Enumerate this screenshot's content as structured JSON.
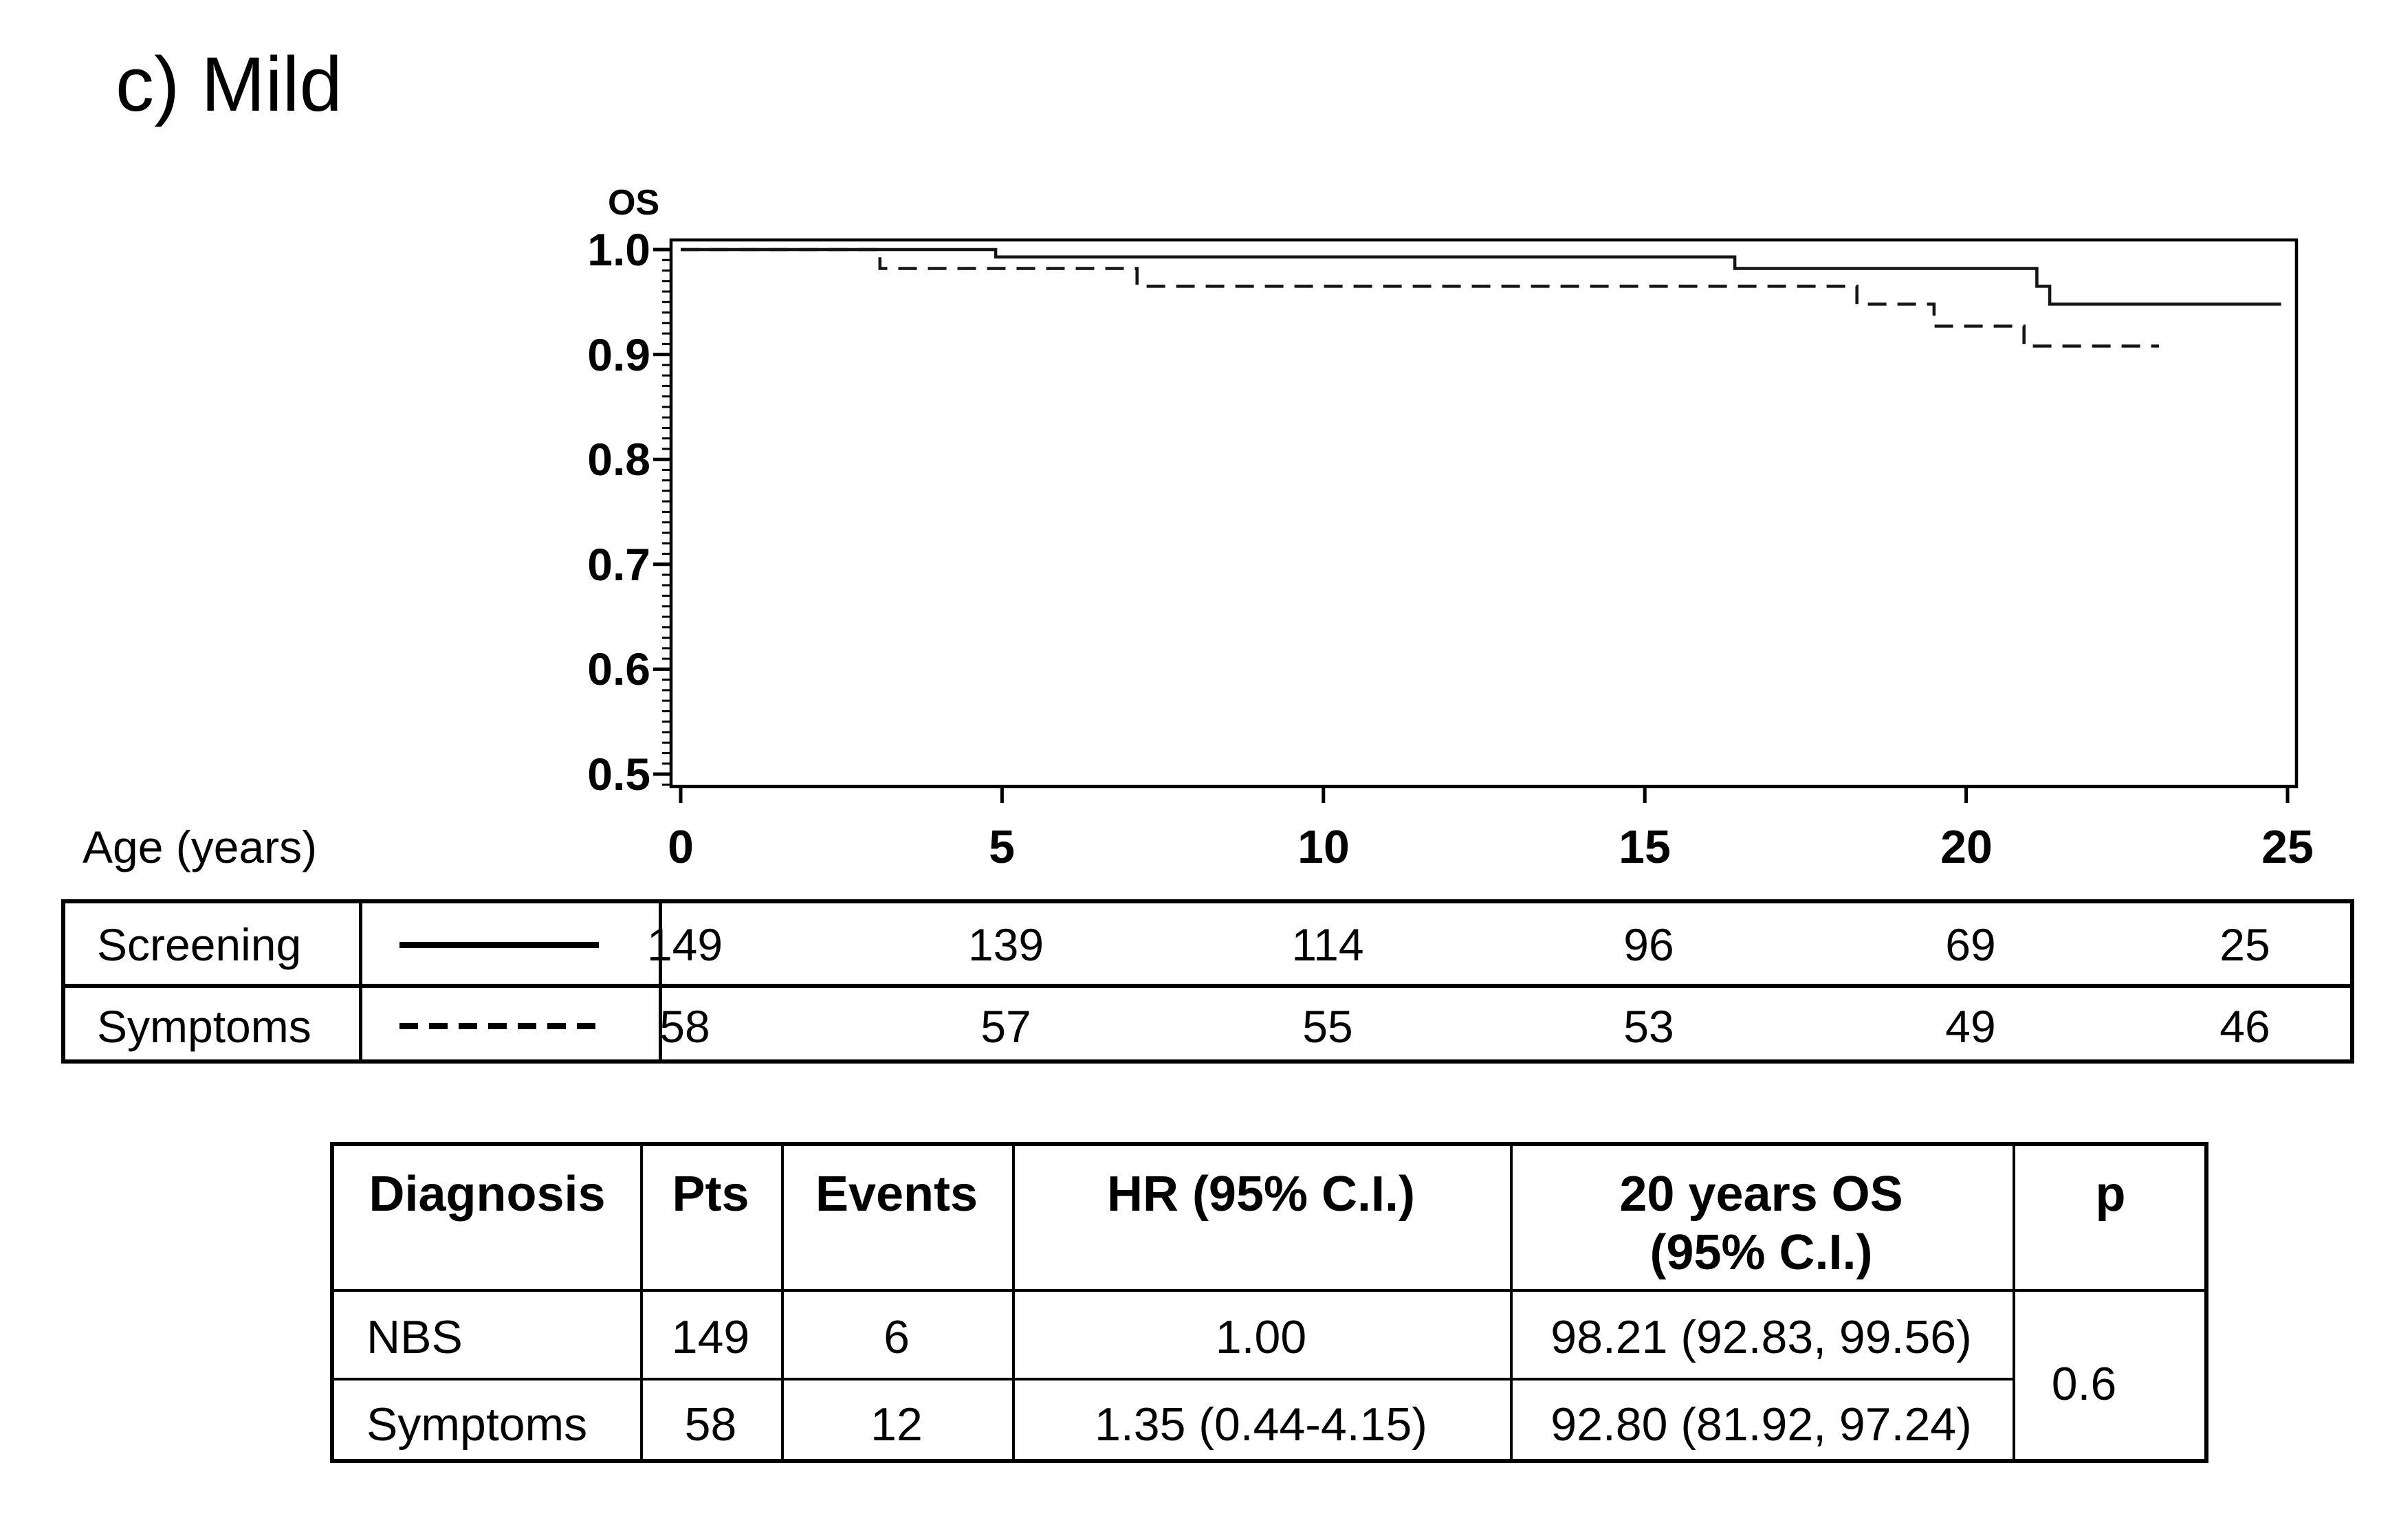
{
  "title": "c) Mild",
  "chart": {
    "ylabel": "OS",
    "xlabel": "Age (years)",
    "y_tick_labels": [
      "1.0",
      "0.9",
      "0.8",
      "0.7",
      "0.6",
      "0.5"
    ],
    "x_tick_labels": [
      "0",
      "5",
      "10",
      "15",
      "20",
      "25"
    ]
  },
  "chart_data": {
    "type": "line",
    "subtype": "kaplan-meier-step",
    "title": "c) Mild",
    "xlabel": "Age (years)",
    "ylabel": "OS",
    "xlim": [
      0,
      25
    ],
    "ylim": [
      0.5,
      1.0
    ],
    "x_ticks": [
      0,
      5,
      10,
      15,
      20,
      25
    ],
    "y_ticks": [
      1.0,
      0.9,
      0.8,
      0.7,
      0.6,
      0.5
    ],
    "y_minor_tick_interval": 0.01,
    "grid": false,
    "legend_position": "left column of risk table",
    "series": [
      {
        "name": "Screening",
        "line": "solid",
        "steps": [
          [
            0,
            1.0
          ],
          [
            4.9,
            1.0
          ],
          [
            4.9,
            0.993
          ],
          [
            16.4,
            0.993
          ],
          [
            16.4,
            0.982
          ],
          [
            21.1,
            0.982
          ],
          [
            21.1,
            0.965
          ],
          [
            21.3,
            0.965
          ],
          [
            21.3,
            0.948
          ],
          [
            24.9,
            0.948
          ]
        ]
      },
      {
        "name": "Symptoms",
        "line": "dashed",
        "steps": [
          [
            0,
            1.0
          ],
          [
            3.1,
            1.0
          ],
          [
            3.1,
            0.982
          ],
          [
            7.1,
            0.982
          ],
          [
            7.1,
            0.965
          ],
          [
            18.3,
            0.965
          ],
          [
            18.3,
            0.948
          ],
          [
            19.5,
            0.948
          ],
          [
            19.5,
            0.927
          ],
          [
            20.9,
            0.927
          ],
          [
            20.9,
            0.908
          ],
          [
            23.0,
            0.908
          ]
        ]
      }
    ]
  },
  "risk_table": {
    "rows": [
      {
        "label": "Screening",
        "line": "solid",
        "counts": [
          "149",
          "139",
          "114",
          "96",
          "69",
          "25"
        ]
      },
      {
        "label": "Symptoms",
        "line": "dashed",
        "counts": [
          "58",
          "57",
          "55",
          "53",
          "49",
          "46"
        ]
      }
    ]
  },
  "stats_table": {
    "headers": {
      "diagnosis": "Diagnosis",
      "pts": "Pts",
      "events": "Events",
      "hr": "HR (95% C.I.)",
      "os_line1": "20 years OS",
      "os_line2": "(95% C.I.)",
      "p": "p"
    },
    "rows": [
      {
        "diagnosis": "NBS",
        "pts": "149",
        "events": "6",
        "hr": "1.00",
        "os": "98.21 (92.83, 99.56)"
      },
      {
        "diagnosis": "Symptoms",
        "pts": "58",
        "events": "12",
        "hr": "1.35 (0.44-4.15)",
        "os": "92.80 (81.92, 97.24)"
      }
    ],
    "p_value": "0.6"
  }
}
